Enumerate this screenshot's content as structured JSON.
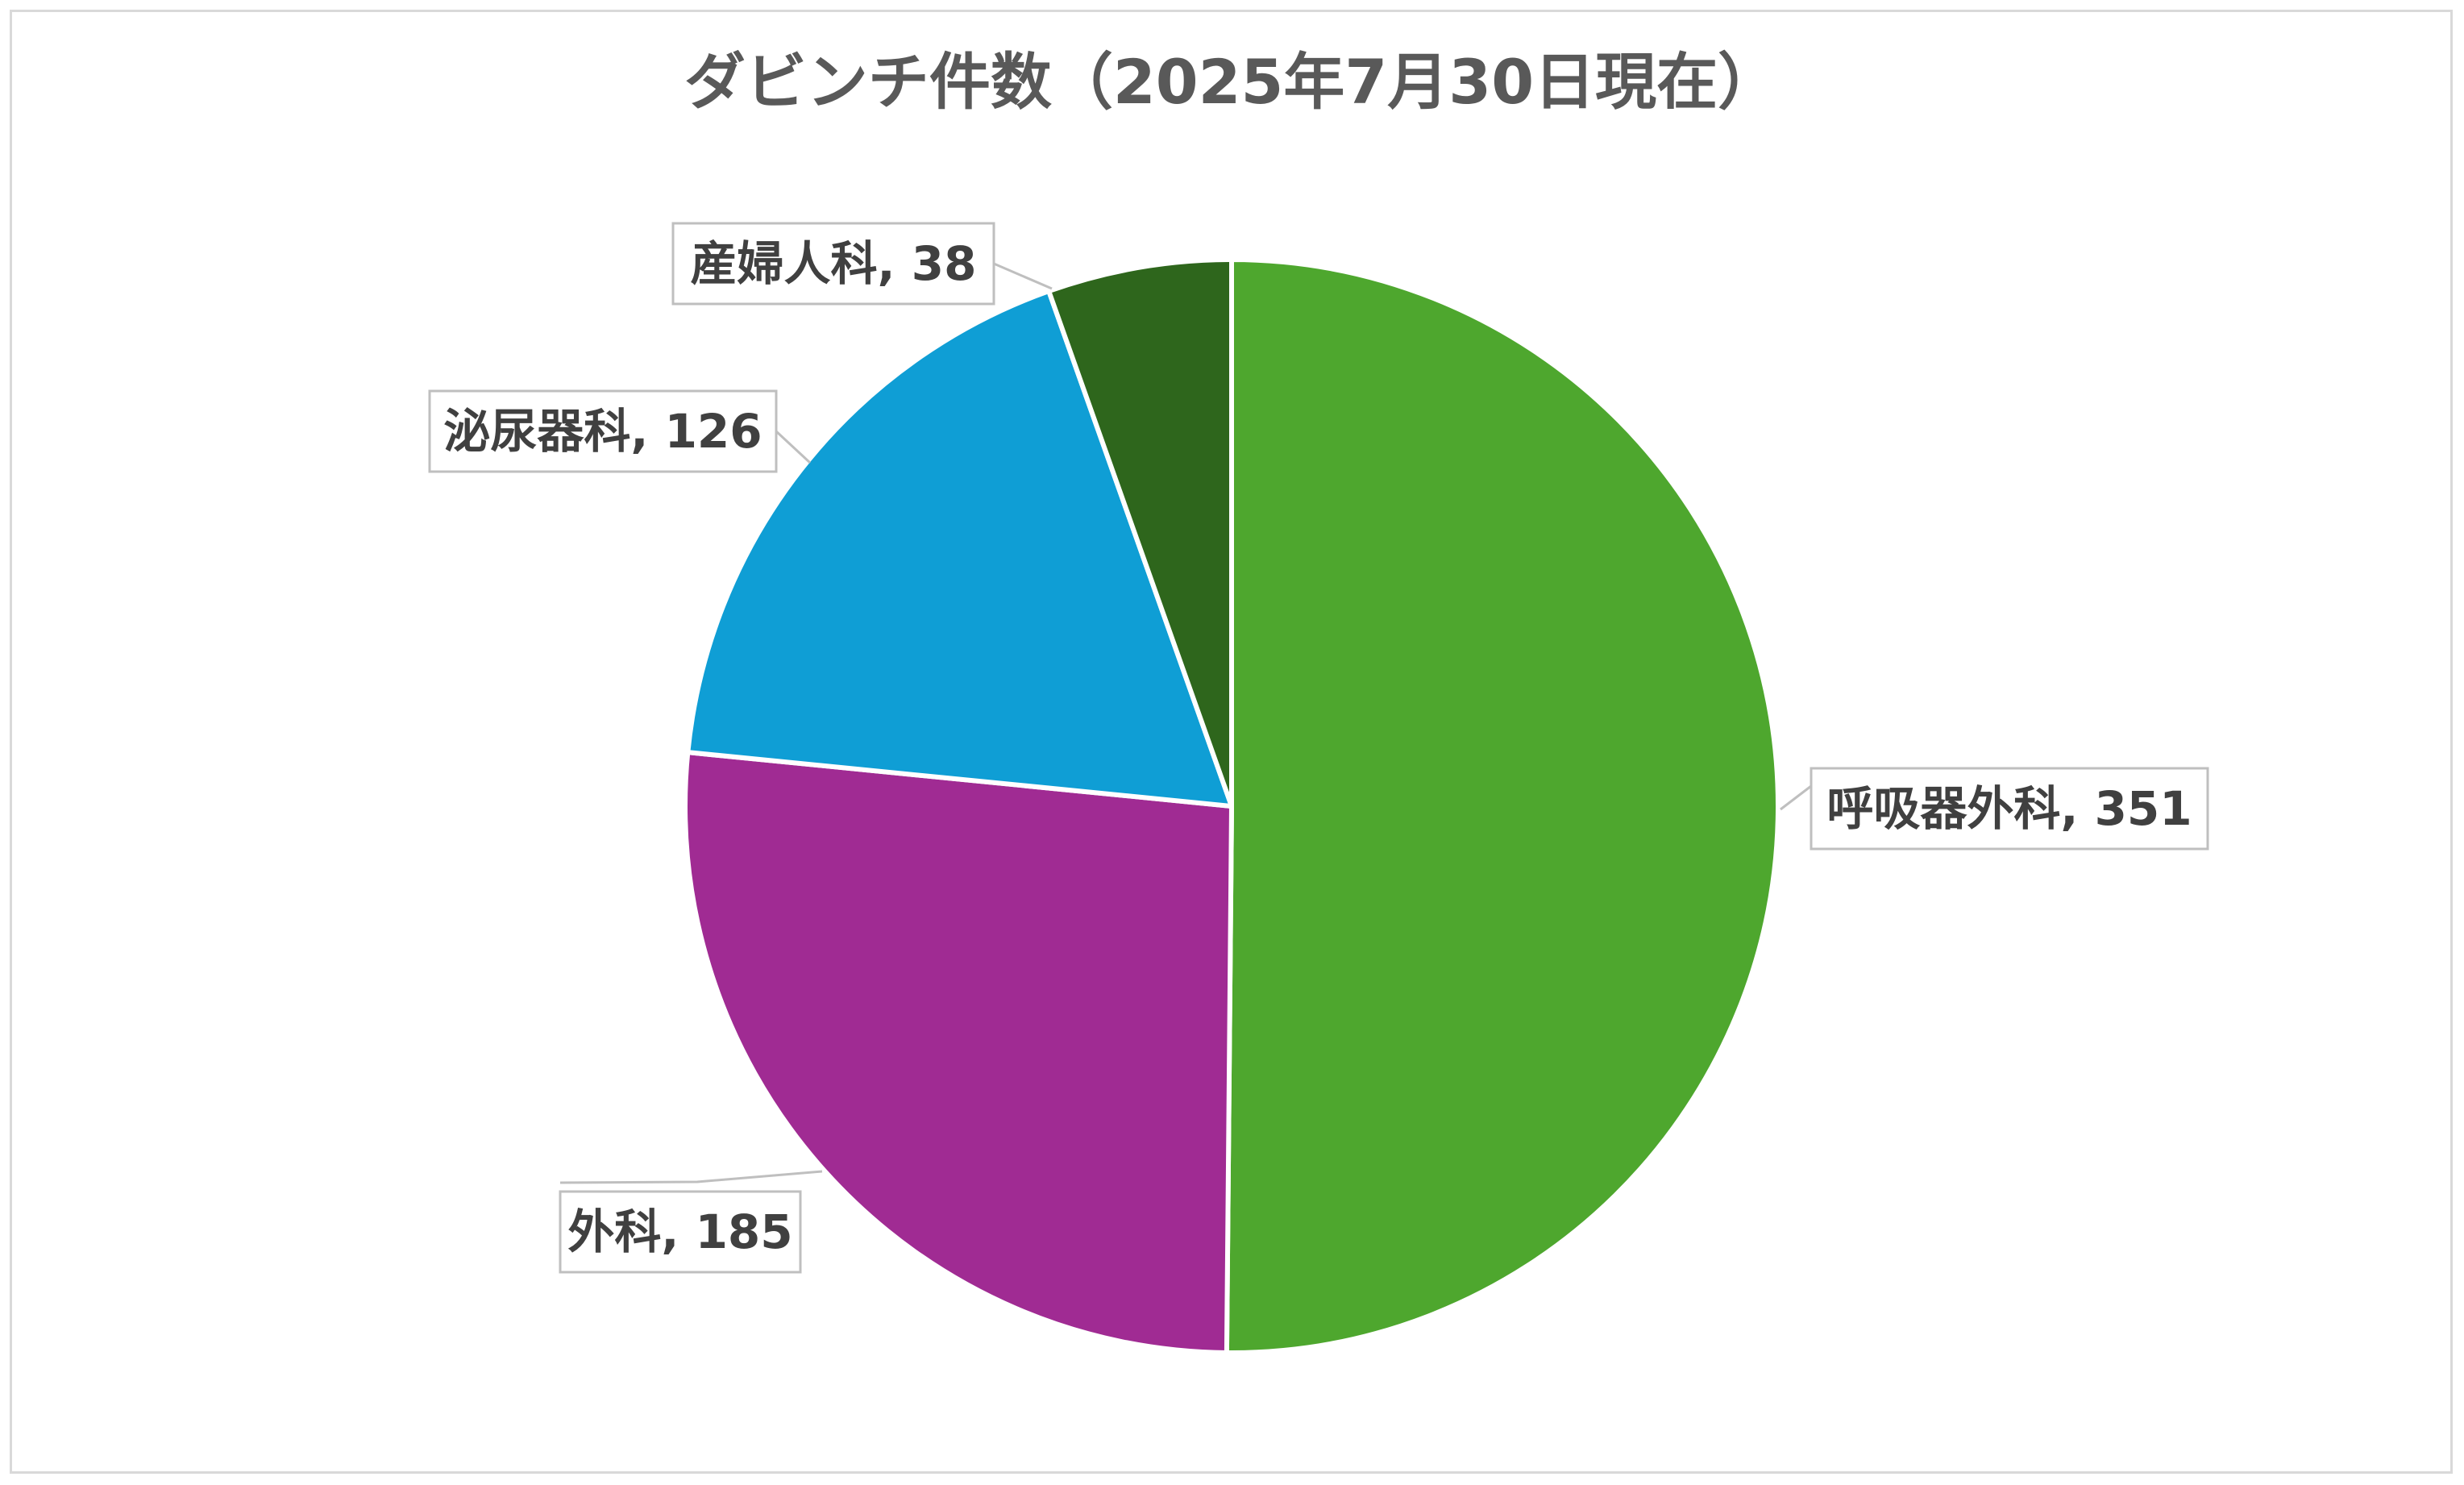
{
  "chart_data": {
    "type": "pie",
    "title": "ダビンチ件数（2025年7月30日現在）",
    "slices": [
      {
        "label": "呼吸器外科",
        "value": 351,
        "color": "#4ea72e",
        "label_text": "呼吸器外科, 351"
      },
      {
        "label": "外科",
        "value": 185,
        "color": "#a02b93",
        "label_text": "外科, 185"
      },
      {
        "label": "泌尿器科",
        "value": 126,
        "color": "#0f9ed5",
        "label_text": "泌尿器科, 126"
      },
      {
        "label": "産婦人科",
        "value": 38,
        "color": "#2e661c",
        "label_text": "産婦人科, 38"
      }
    ],
    "start_angle": "12 o'clock",
    "direction": "clockwise",
    "legend": "none",
    "data_labels": "category name and value with leader lines"
  }
}
